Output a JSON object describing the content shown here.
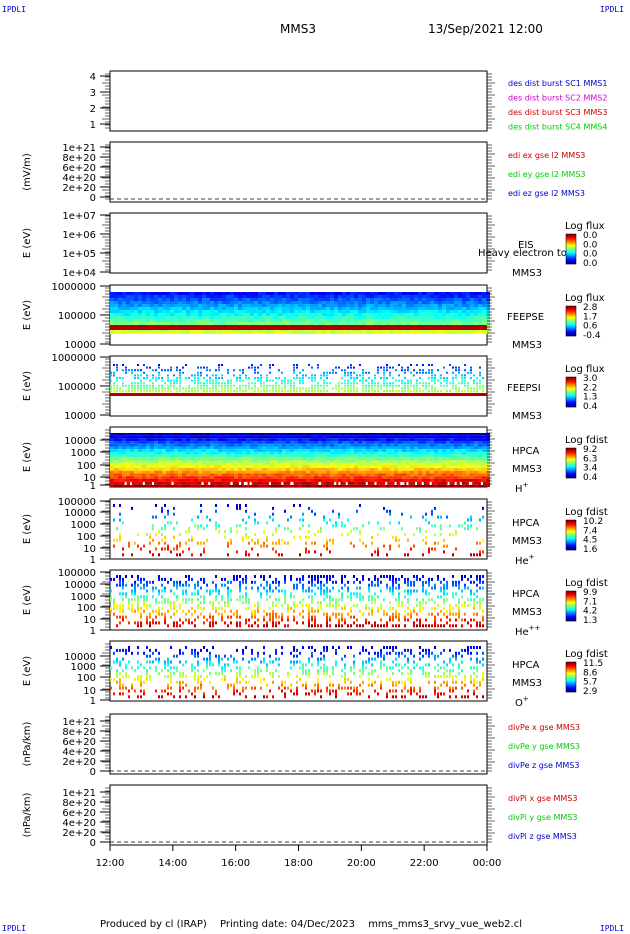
{
  "corner_label": "IPDLI",
  "header": {
    "spacecraft": "MMS3",
    "datetime": "13/Sep/2021 12:00"
  },
  "footer": {
    "produced_by": "Produced by cl (IRAP)",
    "printing_date": "Printing date: 04/Dec/2023",
    "file": "mms_mms3_srvy_vue_web2.cl"
  },
  "colors": {
    "mms1": "#0000cc",
    "mms2": "#cc00cc",
    "mms3": "#cc0000",
    "mms4": "#00cc00",
    "x": "#cc0000",
    "y": "#00cc00",
    "z": "#0000cc"
  },
  "chart_data": {
    "type": "stacked-timeseries",
    "time_axis": {
      "ticks": [
        "12:00",
        "14:00",
        "16:00",
        "18:00",
        "20:00",
        "22:00",
        "00:00"
      ],
      "range": [
        "12:00",
        "00:00"
      ]
    },
    "panels": [
      {
        "id": "burst",
        "type": "line",
        "yticks": [
          "1",
          "2",
          "3",
          "4"
        ],
        "legend": [
          "des dist burst SC1 MMS1",
          "des dist burst SC2 MMS2",
          "des dist burst SC3 MMS3",
          "des dist burst SC4 MMS4"
        ]
      },
      {
        "id": "edi",
        "type": "line",
        "ylabel": "(mV/m)",
        "yticks": [
          "0",
          "2e+20",
          "4e+20",
          "6e+20",
          "8e+20",
          "1e+21"
        ],
        "legend": [
          "edi ex gse l2 MMS3",
          "edi ey gse l2 MMS3",
          "edi ez gse l2 MMS3"
        ]
      },
      {
        "id": "eis",
        "type": "heatmap",
        "ylabel": "E (eV)",
        "yticks": [
          "1e+04",
          "1e+05",
          "1e+06",
          "1e+07"
        ],
        "labels": [
          "EIS",
          "MMS3"
        ],
        "overlay_text": "Heavy electron to",
        "colorbar": {
          "title": "Log flux",
          "ticks": [
            "0.0",
            "0.0",
            "0.0",
            "0.0"
          ]
        }
      },
      {
        "id": "feepse",
        "type": "heatmap",
        "ylabel": "E (eV)",
        "yticks": [
          "10000",
          "100000",
          "1000000"
        ],
        "labels": [
          "FEEPSE",
          "MMS3"
        ],
        "colorbar": {
          "title": "Log flux",
          "ticks": [
            "2.8",
            "1.7",
            "0.6",
            "-0.4"
          ]
        }
      },
      {
        "id": "feepsi",
        "type": "heatmap",
        "ylabel": "E (eV)",
        "yticks": [
          "10000",
          "100000",
          "1000000"
        ],
        "labels": [
          "FEEPSI",
          "MMS3"
        ],
        "colorbar": {
          "title": "Log flux",
          "ticks": [
            "3.0",
            "2.2",
            "1.3",
            "0.4"
          ]
        }
      },
      {
        "id": "hpca_h",
        "type": "heatmap",
        "ylabel": "E (eV)",
        "yticks": [
          "1",
          "10",
          "100",
          "1000",
          "10000"
        ],
        "labels": [
          "HPCA",
          "MMS3"
        ],
        "species": "H",
        "species_sup": "+",
        "colorbar": {
          "title": "Log fdist",
          "ticks": [
            "9.2",
            "6.3",
            "3.4",
            "0.4"
          ]
        }
      },
      {
        "id": "hpca_he",
        "type": "heatmap",
        "ylabel": "E (eV)",
        "yticks": [
          "1",
          "10",
          "100",
          "1000",
          "10000",
          "100000"
        ],
        "labels": [
          "HPCA",
          "MMS3"
        ],
        "species": "He",
        "species_sup": "+",
        "colorbar": {
          "title": "Log fdist",
          "ticks": [
            "10.2",
            "7.4",
            "4.5",
            "1.6"
          ]
        }
      },
      {
        "id": "hpca_he2",
        "type": "heatmap",
        "ylabel": "E (eV)",
        "yticks": [
          "1",
          "10",
          "100",
          "1000",
          "10000",
          "100000"
        ],
        "labels": [
          "HPCA",
          "MMS3"
        ],
        "species": "He",
        "species_sup": "++",
        "colorbar": {
          "title": "Log fdist",
          "ticks": [
            "9.9",
            "7.1",
            "4.2",
            "1.3"
          ]
        }
      },
      {
        "id": "hpca_o",
        "type": "heatmap",
        "ylabel": "E (eV)",
        "yticks": [
          "1",
          "10",
          "100",
          "1000",
          "10000"
        ],
        "labels": [
          "HPCA",
          "MMS3"
        ],
        "species": "O",
        "species_sup": "+",
        "colorbar": {
          "title": "Log fdist",
          "ticks": [
            "11.5",
            "8.6",
            "5.7",
            "2.9"
          ]
        }
      },
      {
        "id": "divpe",
        "type": "line",
        "ylabel": "(nPa/km)",
        "yticks": [
          "0",
          "2e+20",
          "4e+20",
          "6e+20",
          "8e+20",
          "1e+21"
        ],
        "legend": [
          "divPe x gse MMS3",
          "divPe y gse MMS3",
          "divPe z gse MMS3"
        ]
      },
      {
        "id": "divpi",
        "type": "line",
        "ylabel": "(nPa/km)",
        "yticks": [
          "0",
          "2e+20",
          "4e+20",
          "6e+20",
          "8e+20",
          "1e+21"
        ],
        "legend": [
          "divPi x gse MMS3",
          "divPi y gse MMS3",
          "divPi z gse MMS3"
        ]
      }
    ]
  }
}
